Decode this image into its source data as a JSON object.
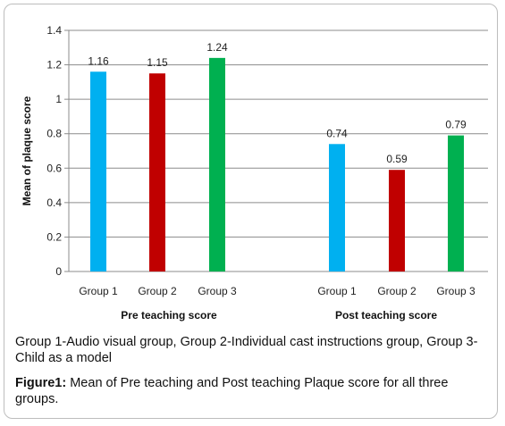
{
  "chart_data": {
    "type": "bar",
    "ylabel": "Mean of plaque score",
    "ylim": [
      0,
      1.4
    ],
    "yticks": [
      "0",
      "0.2",
      "0.4",
      "0.6",
      "0.8",
      "1",
      "1.2",
      "1.4"
    ],
    "grid": true,
    "groups": [
      {
        "label": "Pre teaching score",
        "bars": [
          {
            "category": "Group 1",
            "value": 1.16,
            "label": "1.16",
            "color": "#00b0f0"
          },
          {
            "category": "Group 2",
            "value": 1.15,
            "label": "1.15",
            "color": "#c00000"
          },
          {
            "category": "Group 3",
            "value": 1.24,
            "label": "1.24",
            "color": "#00b050"
          }
        ]
      },
      {
        "label": "Post teaching score",
        "bars": [
          {
            "category": "Group 1",
            "value": 0.74,
            "label": "0.74",
            "color": "#00b0f0"
          },
          {
            "category": "Group 2",
            "value": 0.59,
            "label": "0.59",
            "color": "#c00000"
          },
          {
            "category": "Group 3",
            "value": 0.79,
            "label": "0.79",
            "color": "#00b050"
          }
        ]
      }
    ]
  },
  "caption": {
    "legend_note": "Group 1-Audio visual group, Group 2-Individual cast instructions group, Group 3-Child as a model",
    "figure_label": "Figure1:",
    "figure_text": " Mean of Pre teaching and Post teaching Plaque score for all three groups."
  }
}
